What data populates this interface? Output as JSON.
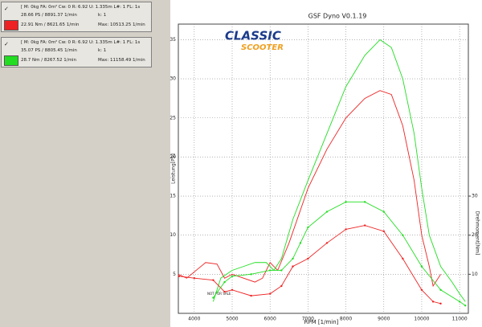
{
  "panels": [
    {
      "header": "[ M: 0kg  FA: 0m²  Cw: 0  R: 6.92  U: 1.335m  L#: 1  FL: 1s",
      "power": "28.66 PS / 8891.37 1/min",
      "k": "k: 1",
      "torque": "22.91 Nm / 8621.65 1/min",
      "max": "Max: 10513.25 1/min"
    },
    {
      "header": "[ M: 0kg  FA: 0m²  Cw: 0  R: 6.92  U: 1.335m  L#: 1  FL: 1s",
      "power": "35.07 PS / 8805.45 1/min",
      "k": "k: 1",
      "torque": "28.7 Nm / 8267.52 1/min",
      "max": "Max: 11158.49 1/min"
    }
  ],
  "logo": [
    "CLASSIC",
    "SCOOTER"
  ],
  "chart_data": {
    "type": "line",
    "title": "GSF Dyno V0.1.19",
    "xlabel": "RPM [1/min]",
    "ylabel": "Leistung[PS]",
    "y2label": "Drehmoment[Nm]",
    "note": "NOT FOR SALE",
    "xlim": [
      3580,
      11230
    ],
    "xticks": [
      4000,
      5000,
      6000,
      7000,
      8000,
      9000,
      10000,
      11000
    ],
    "ylim": [
      0,
      37
    ],
    "yticks": [
      5,
      10,
      15,
      20,
      25,
      30,
      35
    ],
    "y2lim": [
      0,
      74
    ],
    "y2ticks": [
      10,
      20,
      30
    ],
    "grid": true,
    "series": [
      {
        "color": "#ee2222",
        "markers": false,
        "x": [
          3580,
          3800,
          4000,
          4300,
          4600,
          4800,
          5000,
          5300,
          5600,
          5800,
          6000,
          6200,
          6500,
          7000,
          7500,
          8000,
          8500,
          8900,
          9200,
          9500,
          9800,
          10000,
          10200,
          10300,
          10500
        ],
        "values": [
          5,
          4.5,
          5.3,
          6.5,
          6.3,
          4.5,
          5,
          4.5,
          4,
          4.5,
          6.5,
          5.5,
          9,
          16,
          21,
          25,
          27.5,
          28.5,
          28,
          24,
          17,
          10,
          6,
          3.5,
          5
        ]
      },
      {
        "color": "#22dd22",
        "markers": false,
        "x": [
          4500,
          4700,
          5000,
          5300,
          5600,
          5900,
          6100,
          6300,
          6600,
          7000,
          7500,
          8000,
          8500,
          8900,
          9200,
          9500,
          9800,
          10000,
          10200,
          10500,
          10800,
          11000,
          11150
        ],
        "values": [
          1.5,
          4.5,
          5.5,
          6,
          6.5,
          6.5,
          5.5,
          7,
          12,
          17,
          23,
          29,
          33,
          35,
          34,
          30,
          23,
          16,
          10,
          6,
          4,
          2.5,
          1.5
        ]
      },
      {
        "color": "#ee2222",
        "markers": true,
        "axis": "y2",
        "x": [
          3600,
          4000,
          4500,
          4800,
          5000,
          5500,
          6000,
          6300,
          6600,
          7000,
          7500,
          8000,
          8500,
          9000,
          9500,
          10000,
          10300,
          10500
        ],
        "values": [
          9.5,
          9,
          8.5,
          5.5,
          6,
          4.5,
          5,
          7,
          12,
          14,
          18,
          21.5,
          22.5,
          21,
          14,
          6,
          3,
          2.5
        ]
      },
      {
        "color": "#22dd22",
        "markers": true,
        "axis": "y2",
        "x": [
          4500,
          4800,
          5000,
          5500,
          6000,
          6300,
          6600,
          6800,
          7000,
          7500,
          8000,
          8500,
          9000,
          9500,
          10000,
          10500,
          11000,
          11150
        ],
        "values": [
          4,
          8,
          9.5,
          10,
          11,
          11,
          14,
          18,
          22,
          26,
          28.5,
          28.5,
          26,
          20,
          12,
          6,
          3,
          2
        ]
      }
    ]
  }
}
